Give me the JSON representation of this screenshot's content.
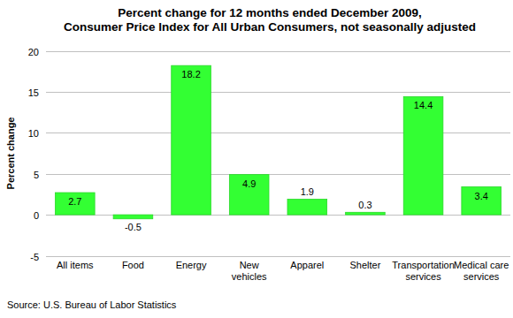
{
  "chart_data": {
    "type": "bar",
    "title": "Percent change for 12 months ended December 2009,\nConsumer Price Index for All Urban Consumers, not seasonally adjusted",
    "y_label": "Percent change",
    "source": "Source: U.S. Bureau of Labor Statistics",
    "categories": [
      "All items",
      "Food",
      "Energy",
      "New vehicles",
      "Apparel",
      "Shelter",
      "Transportation services",
      "Medical care services"
    ],
    "values": [
      2.7,
      -0.5,
      18.2,
      4.9,
      1.9,
      0.3,
      14.4,
      3.4
    ],
    "color": "#33ff33",
    "ylim": [
      -5,
      20
    ],
    "yticks": [
      -5,
      0,
      5,
      10,
      15,
      20
    ],
    "grid": true,
    "data_labels": true
  }
}
